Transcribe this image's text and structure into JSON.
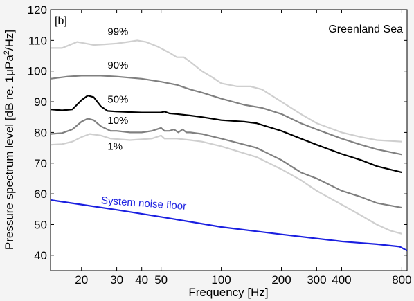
{
  "chart_data": {
    "type": "line",
    "panel_label": "[b]",
    "location_label": "Greenland Sea",
    "xlabel": "Frequency [Hz]",
    "ylabel_prefix": "Pressure spectrum level [dB re. 1μPa",
    "ylabel_sup": "2",
    "ylabel_suffix": "/Hz]",
    "x_scale": "log",
    "xlim": [
      14,
      850
    ],
    "ylim": [
      35,
      120
    ],
    "x_ticks": [
      20,
      30,
      40,
      50,
      100,
      200,
      300,
      400,
      800
    ],
    "x_tick_labels": [
      "20",
      "30",
      "40",
      "50",
      "100",
      "200",
      "300",
      "400",
      "800"
    ],
    "y_ticks": [
      40,
      50,
      60,
      70,
      80,
      90,
      100,
      110,
      120
    ],
    "y_tick_labels": [
      "40",
      "50",
      "60",
      "70",
      "80",
      "90",
      "100",
      "110",
      "120"
    ],
    "grid": false,
    "series": [
      {
        "name": "99%",
        "color": "#cfcfcf",
        "points": [
          [
            14,
            107.5
          ],
          [
            16,
            107.5
          ],
          [
            17,
            108.2
          ],
          [
            19,
            109.5
          ],
          [
            21,
            109
          ],
          [
            23,
            108.5
          ],
          [
            26,
            108.7
          ],
          [
            30,
            109
          ],
          [
            34,
            109.5
          ],
          [
            38,
            110
          ],
          [
            42,
            109.5
          ],
          [
            48,
            108
          ],
          [
            55,
            106
          ],
          [
            60,
            104.5
          ],
          [
            65,
            104.5
          ],
          [
            70,
            103
          ],
          [
            80,
            100
          ],
          [
            90,
            98
          ],
          [
            100,
            96
          ],
          [
            120,
            95
          ],
          [
            140,
            95
          ],
          [
            160,
            94
          ],
          [
            200,
            90
          ],
          [
            250,
            86
          ],
          [
            300,
            83
          ],
          [
            400,
            80
          ],
          [
            500,
            78.5
          ],
          [
            600,
            77.5
          ],
          [
            800,
            77
          ]
        ],
        "label": {
          "text": "99%",
          "x": 27,
          "y": 111.8
        }
      },
      {
        "name": "90%",
        "color": "#808080",
        "points": [
          [
            14,
            97.5
          ],
          [
            17,
            98.2
          ],
          [
            20,
            98.5
          ],
          [
            25,
            98.5
          ],
          [
            30,
            98.2
          ],
          [
            40,
            97.5
          ],
          [
            50,
            96.5
          ],
          [
            60,
            95.5
          ],
          [
            70,
            94
          ],
          [
            80,
            93
          ],
          [
            100,
            91
          ],
          [
            130,
            89
          ],
          [
            160,
            88
          ],
          [
            200,
            86
          ],
          [
            250,
            83
          ],
          [
            300,
            81
          ],
          [
            400,
            78
          ],
          [
            500,
            76
          ],
          [
            600,
            74.5
          ],
          [
            800,
            72.8
          ]
        ],
        "label": {
          "text": "90%",
          "x": 27,
          "y": 100.8
        }
      },
      {
        "name": "50%",
        "color": "#000000",
        "points": [
          [
            14,
            87.5
          ],
          [
            16,
            87.2
          ],
          [
            18,
            87.5
          ],
          [
            20,
            90.5
          ],
          [
            21.5,
            92
          ],
          [
            23,
            91.5
          ],
          [
            25,
            88.5
          ],
          [
            27,
            87
          ],
          [
            30,
            86.8
          ],
          [
            40,
            86.5
          ],
          [
            50,
            86.5
          ],
          [
            52,
            86.8
          ],
          [
            55,
            86.2
          ],
          [
            60,
            86
          ],
          [
            70,
            85.5
          ],
          [
            80,
            85
          ],
          [
            90,
            84.5
          ],
          [
            100,
            84
          ],
          [
            130,
            83.5
          ],
          [
            150,
            83
          ],
          [
            200,
            80.5
          ],
          [
            250,
            78
          ],
          [
            300,
            76
          ],
          [
            400,
            73
          ],
          [
            500,
            71
          ],
          [
            600,
            69
          ],
          [
            800,
            67
          ]
        ],
        "label": {
          "text": "50%",
          "x": 27,
          "y": 89.7
        }
      },
      {
        "name": "10%",
        "color": "#808080",
        "points": [
          [
            14,
            79.5
          ],
          [
            16,
            79.8
          ],
          [
            18,
            81
          ],
          [
            20,
            83.5
          ],
          [
            21.5,
            84.5
          ],
          [
            23,
            84
          ],
          [
            25,
            82
          ],
          [
            28,
            80.5
          ],
          [
            30,
            80.5
          ],
          [
            35,
            80
          ],
          [
            40,
            80
          ],
          [
            45,
            80.5
          ],
          [
            50,
            81.5
          ],
          [
            52,
            80.5
          ],
          [
            55,
            80.5
          ],
          [
            58,
            81
          ],
          [
            61,
            80
          ],
          [
            64,
            81
          ],
          [
            67,
            80
          ],
          [
            70,
            80
          ],
          [
            80,
            79.5
          ],
          [
            100,
            78
          ],
          [
            150,
            75
          ],
          [
            200,
            71
          ],
          [
            250,
            67
          ],
          [
            300,
            65
          ],
          [
            400,
            61
          ],
          [
            500,
            59
          ],
          [
            600,
            57
          ],
          [
            800,
            55.5
          ]
        ],
        "label": {
          "text": "10%",
          "x": 27,
          "y": 82.8
        }
      },
      {
        "name": "1%",
        "color": "#cfcfcf",
        "points": [
          [
            14,
            76
          ],
          [
            16,
            76.2
          ],
          [
            18,
            77
          ],
          [
            20,
            78.5
          ],
          [
            22,
            79.5
          ],
          [
            25,
            79
          ],
          [
            28,
            78
          ],
          [
            35,
            77.5
          ],
          [
            45,
            78
          ],
          [
            50,
            79
          ],
          [
            52,
            78
          ],
          [
            60,
            78
          ],
          [
            70,
            77.5
          ],
          [
            80,
            77
          ],
          [
            100,
            75.5
          ],
          [
            150,
            72
          ],
          [
            200,
            68
          ],
          [
            250,
            64.5
          ],
          [
            300,
            61
          ],
          [
            400,
            56.5
          ],
          [
            500,
            53
          ],
          [
            600,
            50
          ],
          [
            700,
            48
          ],
          [
            800,
            47
          ]
        ],
        "label": {
          "text": "1%",
          "x": 27,
          "y": 74.3
        }
      },
      {
        "name": "System noise floor",
        "color": "#1a1fe0",
        "points": [
          [
            14,
            58
          ],
          [
            20,
            56.5
          ],
          [
            30,
            54.8
          ],
          [
            50,
            52.5
          ],
          [
            100,
            49.2
          ],
          [
            200,
            46.8
          ],
          [
            400,
            44.5
          ],
          [
            600,
            43.6
          ],
          [
            780,
            42.8
          ],
          [
            850,
            41.5
          ]
        ],
        "label": {
          "text": "System noise floor",
          "x": 25,
          "y": 56.8,
          "rotate": 4
        }
      }
    ]
  }
}
